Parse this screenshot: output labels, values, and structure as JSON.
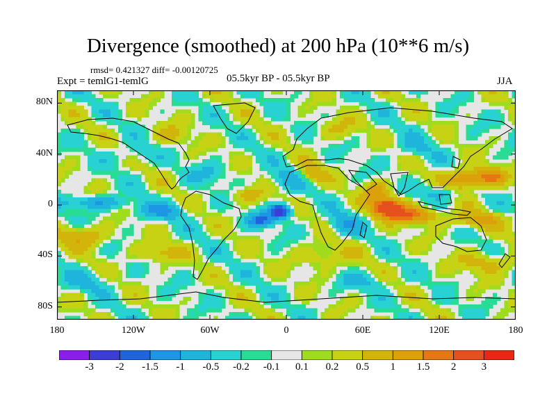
{
  "figure": {
    "title": "Divergence (smoothed) at 200 hPa (10**6 m/s)",
    "stats": "rmsd= 0.421327 diff= -0.00120725",
    "expt": "Expt = temlG1-temlG",
    "period": "05.5kyr BP - 05.5kyr BP",
    "season": "JJA"
  },
  "axes": {
    "lat_ticks": [
      {
        "value": 80,
        "label": "80N"
      },
      {
        "value": 40,
        "label": "40N"
      },
      {
        "value": 0,
        "label": "0"
      },
      {
        "value": -40,
        "label": "40S"
      },
      {
        "value": -80,
        "label": "80S"
      }
    ],
    "lon_ticks": [
      {
        "value": -180,
        "label": "180"
      },
      {
        "value": -120,
        "label": "120W"
      },
      {
        "value": -60,
        "label": "60W"
      },
      {
        "value": 0,
        "label": "0"
      },
      {
        "value": 60,
        "label": "60E"
      },
      {
        "value": 120,
        "label": "120E"
      },
      {
        "value": 180,
        "label": "180"
      }
    ],
    "lon_range": [
      -180,
      180
    ],
    "lat_range": [
      -90,
      90
    ]
  },
  "colorbar": {
    "colors": [
      "#8c1eeb",
      "#3c3cd7",
      "#1e64dc",
      "#1e96e6",
      "#1eb4dc",
      "#28d2d2",
      "#28dc96",
      "#e6e6e6",
      "#a0dc1e",
      "#c8d214",
      "#d2b40a",
      "#dca00a",
      "#e67814",
      "#e6501e",
      "#e62814"
    ],
    "labels": [
      "-3",
      "-2",
      "-1.5",
      "-1",
      "-0.5",
      "-0.2",
      "-0.1",
      "0.1",
      "0.2",
      "0.5",
      "1",
      "1.5",
      "2",
      "3"
    ]
  },
  "field_anomalies": [
    {
      "lon": 80,
      "lat": -2,
      "amp": 2.8,
      "w": 12,
      "h": 7
    },
    {
      "lon": 100,
      "lat": -8,
      "amp": 1.8,
      "w": 18,
      "h": 6
    },
    {
      "lon": 140,
      "lat": 20,
      "amp": 1.6,
      "w": 14,
      "h": 8
    },
    {
      "lon": 160,
      "lat": 22,
      "amp": 1.5,
      "w": 12,
      "h": 6
    },
    {
      "lon": 70,
      "lat": 10,
      "amp": 1.2,
      "w": 10,
      "h": 8
    },
    {
      "lon": 150,
      "lat": -12,
      "amp": 1.0,
      "w": 20,
      "h": 6
    },
    {
      "lon": 20,
      "lat": 25,
      "amp": 0.8,
      "w": 10,
      "h": 8
    },
    {
      "lon": -30,
      "lat": 8,
      "amp": 0.7,
      "w": 12,
      "h": 6
    },
    {
      "lon": -160,
      "lat": -25,
      "amp": 0.9,
      "w": 20,
      "h": 8
    },
    {
      "lon": -100,
      "lat": -38,
      "amp": 0.7,
      "w": 18,
      "h": 7
    },
    {
      "lon": 30,
      "lat": -40,
      "amp": 0.6,
      "w": 20,
      "h": 10
    },
    {
      "lon": 160,
      "lat": -45,
      "amp": 0.7,
      "w": 25,
      "h": 8
    },
    {
      "lon": -90,
      "lat": 55,
      "amp": 0.5,
      "w": 15,
      "h": 8
    },
    {
      "lon": 40,
      "lat": 60,
      "amp": 0.5,
      "w": 15,
      "h": 8
    },
    {
      "lon": -5,
      "lat": -5,
      "amp": -2.5,
      "w": 8,
      "h": 5
    },
    {
      "lon": -20,
      "lat": -12,
      "amp": -1.6,
      "w": 10,
      "h": 5
    },
    {
      "lon": -150,
      "lat": 2,
      "amp": -1.0,
      "w": 25,
      "h": 5
    },
    {
      "lon": -100,
      "lat": -5,
      "amp": -0.9,
      "w": 20,
      "h": 6
    },
    {
      "lon": 45,
      "lat": -15,
      "amp": -0.9,
      "w": 12,
      "h": 8
    },
    {
      "lon": 120,
      "lat": 10,
      "amp": -0.8,
      "w": 15,
      "h": 6
    },
    {
      "lon": 0,
      "lat": 20,
      "amp": -0.6,
      "w": 15,
      "h": 8
    },
    {
      "lon": -60,
      "lat": 25,
      "amp": -0.5,
      "w": 15,
      "h": 8
    },
    {
      "lon": -160,
      "lat": -60,
      "amp": -0.5,
      "w": 20,
      "h": 8
    },
    {
      "lon": 60,
      "lat": -60,
      "amp": -0.5,
      "w": 20,
      "h": 6
    },
    {
      "lon": 100,
      "lat": 45,
      "amp": -0.5,
      "w": 15,
      "h": 8
    },
    {
      "lon": -120,
      "lat": 40,
      "amp": -0.5,
      "w": 15,
      "h": 8
    }
  ]
}
